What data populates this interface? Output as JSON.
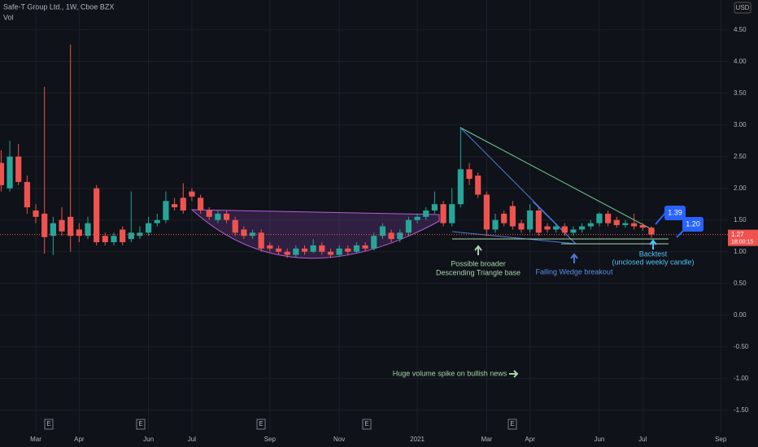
{
  "chart_data": {
    "type": "candlestick",
    "title": "Safe-T Group Ltd., 1W, Cboe BZX",
    "subtitle": "Vol",
    "currency": "USD",
    "up_color": "#26a69a",
    "down_color": "#ef5350",
    "categories": [
      null,
      null,
      null,
      null,
      "Mar",
      null,
      null,
      null,
      null,
      "Apr",
      null,
      null,
      null,
      null,
      null,
      null,
      null,
      "Jun",
      null,
      null,
      null,
      null,
      "Jul",
      null,
      null,
      null,
      null,
      null,
      null,
      null,
      null,
      "Sep",
      null,
      null,
      null,
      null,
      null,
      null,
      null,
      "Nov",
      null,
      null,
      null,
      null,
      null,
      null,
      null,
      null,
      "2021",
      null,
      null,
      null,
      null,
      null,
      null,
      null,
      "Mar",
      null,
      null,
      null,
      null,
      "Apr",
      null,
      null,
      null,
      null,
      null,
      null,
      null,
      "Jun",
      null,
      null,
      null,
      null,
      "Jul",
      null,
      null,
      null,
      null,
      null,
      null,
      null,
      null,
      "Sep"
    ],
    "open": [
      2.4,
      2.0,
      2.5,
      2.1,
      1.65,
      1.6,
      1.25,
      1.5,
      1.55,
      1.35,
      1.25,
      2.0,
      1.25,
      1.15,
      1.35,
      1.2,
      1.25,
      1.3,
      1.45,
      1.5,
      1.75,
      1.85,
      1.95,
      1.85,
      1.65,
      1.5,
      1.6,
      1.5,
      1.35,
      1.25,
      1.3,
      1.1,
      1.05,
      1.0,
      0.95,
      1.05,
      1.0,
      1.1,
      1.0,
      0.95,
      1.05,
      1.0,
      1.1,
      1.05,
      1.25,
      1.3,
      1.2,
      1.3,
      1.5,
      1.55,
      1.65,
      1.75,
      1.45,
      1.75,
      2.3,
      2.2,
      1.9,
      1.35,
      1.6,
      1.72,
      1.45,
      1.35,
      1.65,
      1.4,
      1.35,
      1.4,
      1.3,
      1.35,
      1.4,
      1.45,
      1.6,
      1.5,
      1.42,
      1.45,
      1.42,
      1.38,
      null,
      null,
      null,
      null,
      null,
      null,
      null,
      null
    ],
    "high": [
      2.6,
      2.75,
      2.7,
      2.2,
      1.75,
      3.6,
      1.55,
      1.7,
      4.27,
      1.45,
      1.55,
      2.05,
      1.3,
      1.3,
      1.4,
      1.95,
      1.4,
      1.55,
      1.6,
      1.95,
      1.85,
      2.08,
      2.0,
      1.9,
      1.7,
      1.65,
      1.65,
      1.55,
      1.4,
      1.35,
      1.35,
      1.15,
      1.1,
      1.05,
      1.1,
      1.1,
      1.2,
      1.15,
      1.05,
      1.1,
      1.1,
      1.15,
      1.15,
      1.3,
      1.45,
      1.35,
      1.35,
      1.55,
      1.6,
      1.7,
      1.95,
      1.8,
      2.0,
      2.97,
      2.4,
      2.25,
      1.95,
      1.6,
      1.65,
      1.8,
      1.5,
      1.75,
      1.7,
      1.45,
      1.45,
      1.45,
      1.4,
      1.45,
      1.5,
      1.62,
      1.65,
      1.55,
      1.5,
      1.6,
      1.45,
      1.4,
      null,
      null,
      null,
      null,
      null,
      null,
      null,
      null
    ],
    "low": [
      1.95,
      1.95,
      2.05,
      1.6,
      1.45,
      0.97,
      0.95,
      1.25,
      1.0,
      1.15,
      1.2,
      1.1,
      1.1,
      1.1,
      1.1,
      1.15,
      1.2,
      1.25,
      1.4,
      1.45,
      1.65,
      1.6,
      1.8,
      1.6,
      1.5,
      1.45,
      1.45,
      1.25,
      1.2,
      1.2,
      1.0,
      1.0,
      0.95,
      0.9,
      0.92,
      0.95,
      0.98,
      0.95,
      0.9,
      0.92,
      0.95,
      0.98,
      1.0,
      1.02,
      1.2,
      1.15,
      1.15,
      1.25,
      1.45,
      1.5,
      1.6,
      1.4,
      1.4,
      1.7,
      2.05,
      1.85,
      1.25,
      1.3,
      1.4,
      1.35,
      1.3,
      1.3,
      1.25,
      1.3,
      1.3,
      1.25,
      1.25,
      1.3,
      1.35,
      1.4,
      1.4,
      1.38,
      1.38,
      1.35,
      1.33,
      1.22,
      null,
      null,
      null,
      null,
      null,
      null,
      null,
      null
    ],
    "close": [
      2.05,
      2.5,
      2.1,
      1.7,
      1.55,
      1.23,
      1.45,
      1.32,
      1.25,
      1.25,
      1.45,
      1.15,
      1.15,
      1.25,
      1.15,
      1.3,
      1.3,
      1.45,
      1.5,
      1.8,
      1.7,
      1.65,
      1.87,
      1.65,
      1.55,
      1.6,
      1.5,
      1.3,
      1.25,
      1.3,
      1.05,
      1.05,
      1.0,
      0.95,
      1.05,
      1.0,
      1.1,
      1.0,
      0.95,
      1.05,
      1.0,
      1.1,
      1.05,
      1.25,
      1.4,
      1.2,
      1.3,
      1.5,
      1.55,
      1.65,
      1.75,
      1.45,
      1.75,
      2.3,
      2.15,
      1.9,
      1.35,
      1.5,
      1.45,
      1.4,
      1.35,
      1.65,
      1.3,
      1.35,
      1.4,
      1.3,
      1.35,
      1.4,
      1.45,
      1.6,
      1.45,
      1.42,
      1.45,
      1.4,
      1.38,
      1.27,
      null,
      null,
      null,
      null,
      null,
      null,
      null,
      null
    ],
    "ylim": [
      -2.08,
      4.97
    ],
    "yticks": [
      {
        "value": 4.5,
        "label": "4.50"
      },
      {
        "value": 4,
        "label": "4.00"
      },
      {
        "value": 3.5,
        "label": "3.50"
      },
      {
        "value": 3,
        "label": "3.00"
      },
      {
        "value": 2.5,
        "label": "2.50"
      },
      {
        "value": 2,
        "label": "2.00"
      },
      {
        "value": 1.5,
        "label": "1.50"
      },
      {
        "value": 1,
        "label": "1.00"
      },
      {
        "value": 0.5,
        "label": "0.50"
      },
      {
        "value": 0,
        "label": "0.00"
      },
      {
        "value": -0.5,
        "label": "-0.50"
      },
      {
        "value": -1,
        "label": "-1.00"
      },
      {
        "value": -1.5,
        "label": "-1.50"
      }
    ],
    "grid": true,
    "current_price": 1.27,
    "countdown": "18:00:15",
    "earnings_label": "E",
    "price_notes": [
      1.39,
      {
        "value": 1.2,
        "label": "1.20"
      }
    ],
    "annotations": [
      "Possible broader",
      "Descending Triangle base",
      "Falling Wedge breakout",
      "Backtest",
      "(unclosed weekly candle)",
      "Huge volume spike on bullish news"
    ]
  }
}
